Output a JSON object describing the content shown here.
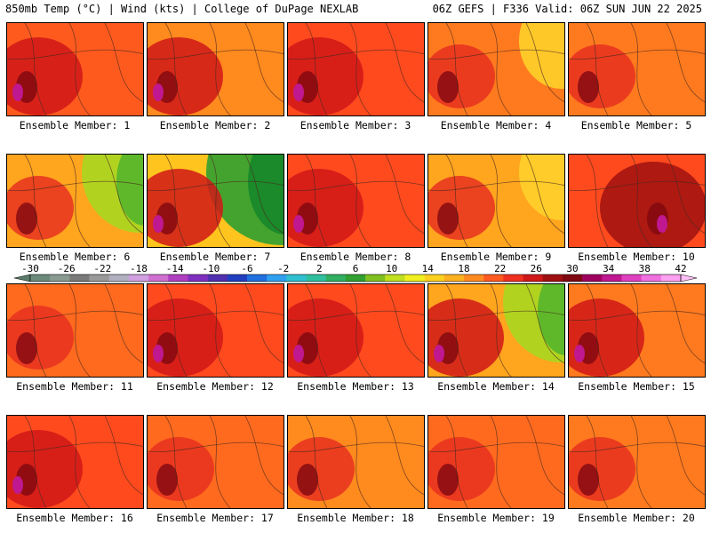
{
  "header": {
    "left": "850mb Temp (°C) | Wind (kts) | College of DuPage NEXLAB",
    "right": "06Z GEFS | F336 Valid: 06Z SUN JUN 22 2025"
  },
  "members": [
    {
      "label": "Ensemble Member: 1",
      "fill": "#ff5a1e",
      "hot": 2,
      "cool": 0
    },
    {
      "label": "Ensemble Member: 2",
      "fill": "#ff8a1e",
      "hot": 2,
      "cool": 0
    },
    {
      "label": "Ensemble Member: 3",
      "fill": "#ff4a1e",
      "hot": 2,
      "cool": 0
    },
    {
      "label": "Ensemble Member: 4",
      "fill": "#ff7a1e",
      "hot": 1,
      "cool": 1
    },
    {
      "label": "Ensemble Member: 5",
      "fill": "#ff7a1e",
      "hot": 1,
      "cool": 0
    },
    {
      "label": "Ensemble Member: 6",
      "fill": "#ffa51e",
      "hot": 1,
      "cool": 2
    },
    {
      "label": "Ensemble Member: 7",
      "fill": "#ffc41e",
      "hot": 2,
      "cool": 3
    },
    {
      "label": "Ensemble Member: 8",
      "fill": "#ff4a1e",
      "hot": 2,
      "cool": 0
    },
    {
      "label": "Ensemble Member: 9",
      "fill": "#ffa51e",
      "hot": 1,
      "cool": 1
    },
    {
      "label": "Ensemble Member: 10",
      "fill": "#ff4a1e",
      "hot": 3,
      "cool": 0
    },
    {
      "label": "Ensemble Member: 11",
      "fill": "#ff6a1e",
      "hot": 1,
      "cool": 0
    },
    {
      "label": "Ensemble Member: 12",
      "fill": "#ff4a1e",
      "hot": 2,
      "cool": 0
    },
    {
      "label": "Ensemble Member: 13",
      "fill": "#ff4a1e",
      "hot": 2,
      "cool": 0
    },
    {
      "label": "Ensemble Member: 14",
      "fill": "#ffa51e",
      "hot": 2,
      "cool": 2
    },
    {
      "label": "Ensemble Member: 15",
      "fill": "#ff7a1e",
      "hot": 2,
      "cool": 0
    },
    {
      "label": "Ensemble Member: 16",
      "fill": "#ff4a1e",
      "hot": 2,
      "cool": 0
    },
    {
      "label": "Ensemble Member: 17",
      "fill": "#ff6a1e",
      "hot": 1,
      "cool": 0
    },
    {
      "label": "Ensemble Member: 18",
      "fill": "#ff8a1e",
      "hot": 1,
      "cool": 0
    },
    {
      "label": "Ensemble Member: 19",
      "fill": "#ff6a1e",
      "hot": 1,
      "cool": 0
    },
    {
      "label": "Ensemble Member: 20",
      "fill": "#ff7a1e",
      "hot": 1,
      "cool": 0
    }
  ],
  "colorbar": {
    "ticks": [
      "-30",
      "-26",
      "-22",
      "-18",
      "-14",
      "-10",
      "-6",
      "-2",
      "2",
      "6",
      "10",
      "14",
      "18",
      "22",
      "26",
      "30",
      "34",
      "38",
      "42"
    ],
    "colors": [
      "#6b8a7a",
      "#8a9b92",
      "#7a7a7a",
      "#9a9a9a",
      "#b0b0c0",
      "#d0a0e0",
      "#d070d0",
      "#b040c0",
      "#8030c0",
      "#5030b0",
      "#2040c0",
      "#2070e0",
      "#30a0f0",
      "#30c0d0",
      "#30c0a0",
      "#30b060",
      "#30a030",
      "#80c020",
      "#c0e020",
      "#f0f020",
      "#ffd020",
      "#ffb020",
      "#ff8a20",
      "#ff5a20",
      "#f03020",
      "#d01818",
      "#a01010",
      "#800810",
      "#a00060",
      "#c01890",
      "#e040c0",
      "#f070e0",
      "#ffa0f0"
    ]
  }
}
